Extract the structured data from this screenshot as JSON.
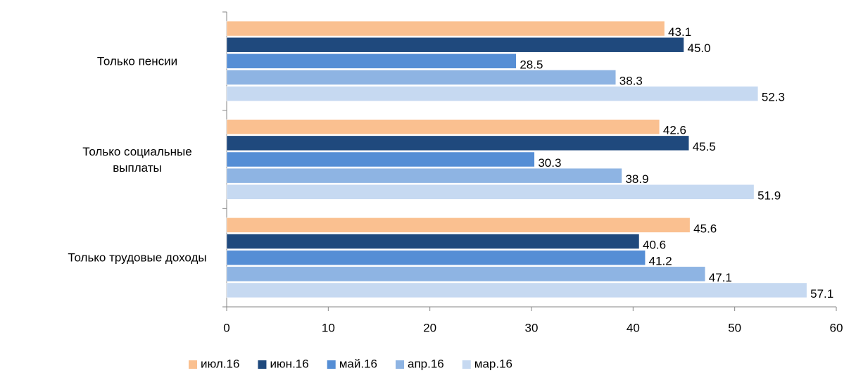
{
  "chart_data": {
    "type": "hbar",
    "categories": [
      "Только пенсии",
      "Только социальные выплаты",
      "Только трудовые доходы"
    ],
    "series": [
      {
        "name": "июл.16",
        "color": "#FAC090",
        "values": [
          43.1,
          42.6,
          45.6
        ],
        "value_labels": [
          "43.1",
          "42.6",
          "45.6"
        ]
      },
      {
        "name": "июн.16",
        "color": "#1F497D",
        "values": [
          45.0,
          45.5,
          40.6
        ],
        "value_labels": [
          "45.0",
          "45.5",
          "40.6"
        ]
      },
      {
        "name": "май.16",
        "color": "#558ED5",
        "values": [
          28.5,
          30.3,
          41.2
        ],
        "value_labels": [
          "28.5",
          "30.3",
          "41.2"
        ]
      },
      {
        "name": "апр.16",
        "color": "#8EB4E3",
        "values": [
          38.3,
          38.9,
          47.1
        ],
        "value_labels": [
          "38.3",
          "38.9",
          "47.1"
        ]
      },
      {
        "name": "мар.16",
        "color": "#C6D9F1",
        "values": [
          52.3,
          51.9,
          57.1
        ],
        "value_labels": [
          "52.3",
          "51.9",
          "57.1"
        ]
      }
    ],
    "xlim": [
      0,
      60
    ],
    "xticks": [
      0,
      10,
      20,
      30,
      40,
      50,
      60
    ],
    "legend": "bottom"
  }
}
